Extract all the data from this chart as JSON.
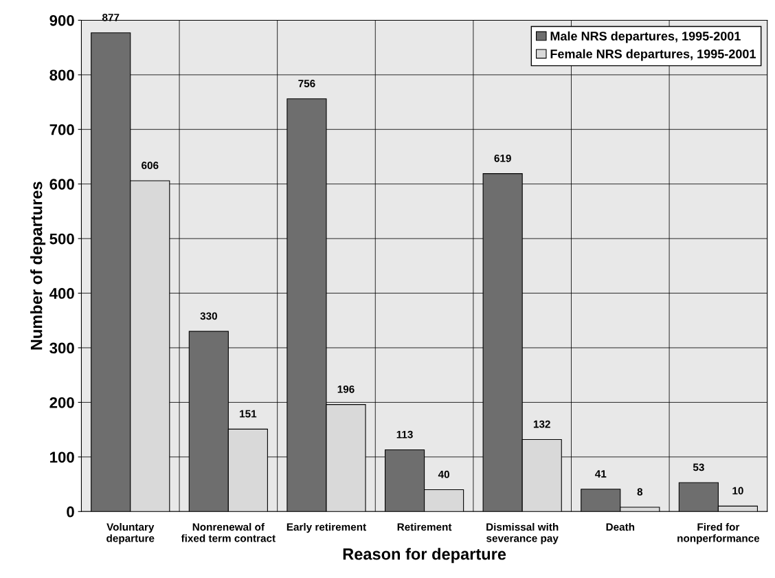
{
  "chart_data": {
    "type": "bar",
    "xlabel": "Reason for departure",
    "ylabel": "Number of departures",
    "categories": [
      "Voluntary\ndeparture",
      "Nonrenewal of\nfixed term contract",
      "Early retirement",
      "Retirement",
      "Dismissal with\nseverance pay",
      "Death",
      "Fired for\nnonperformance"
    ],
    "series": [
      {
        "name": "Male NRS departures, 1995-2001",
        "color": "#6e6e6e",
        "values": [
          877,
          330,
          756,
          113,
          619,
          41,
          53
        ]
      },
      {
        "name": "Female NRS departures, 1995-2001",
        "color": "#d9d9d9",
        "values": [
          606,
          151,
          196,
          40,
          132,
          8,
          10
        ]
      }
    ],
    "ylim": [
      0,
      900
    ],
    "yticks": [
      0,
      100,
      200,
      300,
      400,
      500,
      600,
      700,
      800,
      900
    ],
    "grid": true,
    "legend": "top right",
    "data_labels": true
  }
}
